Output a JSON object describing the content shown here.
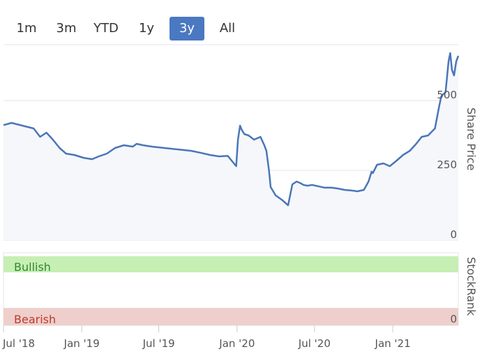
{
  "range_selector": {
    "buttons": [
      {
        "label": "1m",
        "active": false
      },
      {
        "label": "3m",
        "active": false
      },
      {
        "label": "YTD",
        "active": false
      },
      {
        "label": "1y",
        "active": false
      },
      {
        "label": "3y",
        "active": true
      },
      {
        "label": "All",
        "active": false
      }
    ]
  },
  "colors": {
    "line": "#4a76b8",
    "price_area": "#f6f7fb",
    "gridline": "#e3e6ee",
    "bullish_band": "#c6efb4",
    "bearish_band": "#eecfcb",
    "bullish_text": "#2f8a2f",
    "bearish_text": "#c0392b",
    "active_button": "#4a79c1"
  },
  "chart_data": [
    {
      "type": "line",
      "ylabel": "Share Price",
      "ylim": [
        0,
        700
      ],
      "yticks": [
        0,
        250,
        500
      ],
      "grid": true,
      "x_ticklabels": [
        "Jul '18",
        "Jan '19",
        "Jul '19",
        "Jan '20",
        "Jul '20",
        "Jan '21"
      ],
      "series": [
        {
          "x": [
            "2018-07-01",
            "2018-07-20",
            "2018-08-15",
            "2018-09-10",
            "2018-09-25",
            "2018-10-10",
            "2018-10-25",
            "2018-11-10",
            "2018-11-25",
            "2018-12-15",
            "2019-01-05",
            "2019-01-25",
            "2019-02-10",
            "2019-03-01",
            "2019-03-20",
            "2019-04-10",
            "2019-05-01",
            "2019-05-10",
            "2019-05-25",
            "2019-06-15",
            "2019-07-15",
            "2019-08-15",
            "2019-09-15",
            "2019-10-10",
            "2019-10-30",
            "2019-11-20",
            "2019-12-10",
            "2019-12-30",
            "2020-01-03",
            "2020-01-08",
            "2020-01-12",
            "2020-01-18",
            "2020-01-28",
            "2020-02-10",
            "2020-02-25",
            "2020-03-05",
            "2020-03-10",
            "2020-03-16",
            "2020-03-20",
            "2020-04-01",
            "2020-04-15",
            "2020-04-30",
            "2020-05-10",
            "2020-05-20",
            "2020-05-28",
            "2020-06-05",
            "2020-06-15",
            "2020-06-25",
            "2020-07-10",
            "2020-07-25",
            "2020-08-10",
            "2020-08-25",
            "2020-09-10",
            "2020-09-25",
            "2020-10-10",
            "2020-10-25",
            "2020-11-05",
            "2020-11-12",
            "2020-11-15",
            "2020-11-25",
            "2020-12-10",
            "2020-12-25",
            "2021-01-10",
            "2021-01-25",
            "2021-02-10",
            "2021-02-25",
            "2021-03-10",
            "2021-03-25",
            "2021-04-10",
            "2021-04-20",
            "2021-04-25",
            "2021-04-28",
            "2021-05-05",
            "2021-05-12",
            "2021-05-16",
            "2021-05-20",
            "2021-05-25",
            "2021-05-30",
            "2021-06-04"
          ],
          "y": [
            412,
            420,
            410,
            400,
            370,
            385,
            360,
            330,
            310,
            305,
            295,
            290,
            300,
            310,
            330,
            340,
            335,
            345,
            340,
            335,
            330,
            325,
            320,
            312,
            305,
            300,
            302,
            265,
            360,
            410,
            395,
            380,
            375,
            360,
            370,
            340,
            320,
            250,
            190,
            160,
            145,
            125,
            200,
            210,
            205,
            198,
            195,
            198,
            193,
            188,
            188,
            185,
            180,
            178,
            175,
            180,
            210,
            245,
            240,
            270,
            275,
            265,
            285,
            305,
            320,
            345,
            370,
            375,
            400,
            480,
            515,
            520,
            530,
            640,
            670,
            610,
            590,
            640,
            660
          ]
        }
      ]
    },
    {
      "type": "area",
      "ylabel": "StockRank",
      "yticks": [
        0
      ],
      "bands": [
        {
          "label": "Bullish"
        },
        {
          "label": "Bearish"
        }
      ]
    }
  ]
}
